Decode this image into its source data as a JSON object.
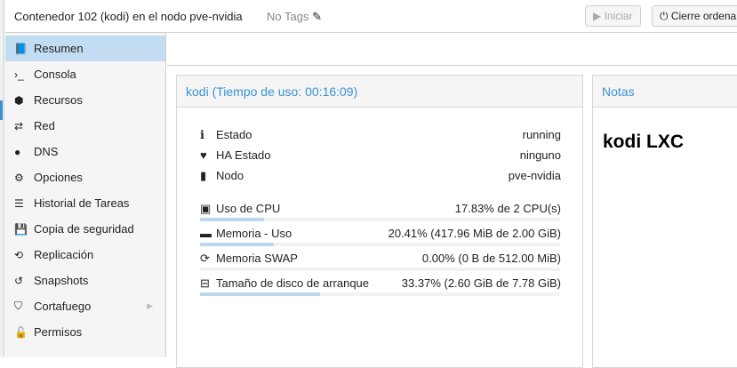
{
  "header": {
    "title": "Contenedor 102 (kodi) en el nodo pve-nvidia",
    "tags": "No Tags",
    "start_label": "Iniciar",
    "shutdown_label": "Cierre ordena"
  },
  "sidebar": {
    "items": [
      {
        "label": "Resumen",
        "icon": "book-icon"
      },
      {
        "label": "Consola",
        "icon": "terminal-icon"
      },
      {
        "label": "Recursos",
        "icon": "cube-icon"
      },
      {
        "label": "Red",
        "icon": "exchange-icon"
      },
      {
        "label": "DNS",
        "icon": "globe-icon"
      },
      {
        "label": "Opciones",
        "icon": "gear-icon"
      },
      {
        "label": "Historial de Tareas",
        "icon": "list-icon"
      },
      {
        "label": "Copia de seguridad",
        "icon": "floppy-icon"
      },
      {
        "label": "Replicación",
        "icon": "retweet-icon"
      },
      {
        "label": "Snapshots",
        "icon": "history-icon"
      },
      {
        "label": "Cortafuego",
        "icon": "shield-icon"
      },
      {
        "label": "Permisos",
        "icon": "unlock-icon"
      }
    ]
  },
  "status": {
    "title": "kodi (Tiempo de uso: 00:16:09)",
    "info": [
      {
        "label": "Estado",
        "value": "running"
      },
      {
        "label": "HA Estado",
        "value": "ninguno"
      },
      {
        "label": "Nodo",
        "value": "pve-nvidia"
      }
    ],
    "usage": [
      {
        "label": "Uso de CPU",
        "value": "17.83% de 2 CPU(s)",
        "percent": 17.83
      },
      {
        "label": "Memoria - Uso",
        "value": "20.41% (417.96 MiB de 2.00 GiB)",
        "percent": 20.41
      },
      {
        "label": "Memoria SWAP",
        "value": "0.00% (0 B de 512.00 MiB)",
        "percent": 0
      },
      {
        "label": "Tamaño de disco de arranque",
        "value": "33.37% (2.60 GiB de 7.78 GiB)",
        "percent": 33.37
      }
    ]
  },
  "notes": {
    "title": "Notas",
    "content": "kodi LXC"
  },
  "colors": {
    "accent": "#3892d4",
    "selected": "#c2ddf2",
    "bar_fill": "#b9d9f1"
  }
}
